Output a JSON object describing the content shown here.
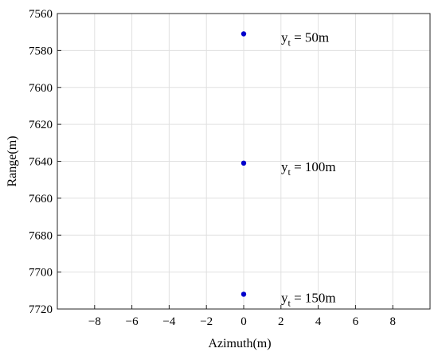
{
  "chart_data": {
    "type": "scatter",
    "title": "",
    "xlabel": "Azimuth(m)",
    "ylabel": "Range(m)",
    "xlim": [
      -10,
      10
    ],
    "ylim": [
      7560,
      7720
    ],
    "y_reversed": true,
    "grid": true,
    "x_ticks": [
      -8,
      -6,
      -4,
      -2,
      0,
      2,
      4,
      6,
      8
    ],
    "y_ticks": [
      7560,
      7580,
      7600,
      7620,
      7640,
      7660,
      7680,
      7700,
      7720
    ],
    "x_tick_labels": [
      "−8",
      "−6",
      "−4",
      "−2",
      "0",
      "2",
      "4",
      "6",
      "8"
    ],
    "y_tick_labels": [
      "7560",
      "7580",
      "7600",
      "7620",
      "7640",
      "7660",
      "7680",
      "7700",
      "7720"
    ],
    "marker_color": "#0000cc",
    "points": [
      {
        "x": 0,
        "y": 7571
      },
      {
        "x": 0,
        "y": 7641
      },
      {
        "x": 0,
        "y": 7712
      }
    ],
    "annotations": [
      {
        "base": "y",
        "sub": "t",
        "text": " = 50m"
      },
      {
        "base": "y",
        "sub": "t",
        "text": " = 100m"
      },
      {
        "base": "y",
        "sub": "t",
        "text": " = 150m"
      }
    ]
  }
}
